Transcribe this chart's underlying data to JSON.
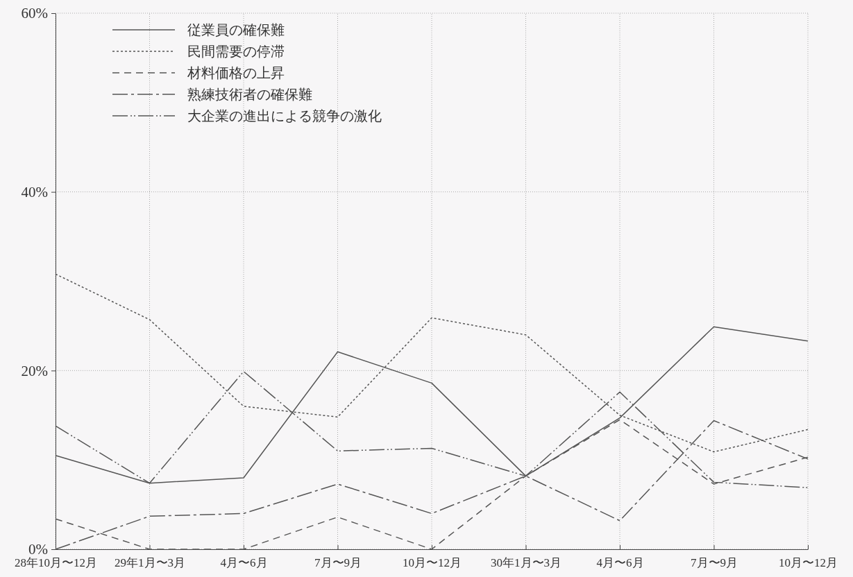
{
  "chart_data": {
    "type": "line",
    "categories": [
      "28年10月〜12月",
      "29年1月〜3月",
      "4月〜6月",
      "7月〜9月",
      "10月〜12月",
      "30年1月〜3月",
      "4月〜6月",
      "7月〜9月",
      "10月〜12月"
    ],
    "series": [
      {
        "name": "従業員の確保難",
        "color": "#555555",
        "line_style": "solid",
        "values": [
          10.5,
          7.4,
          8.0,
          22.1,
          18.6,
          8.2,
          14.7,
          24.9,
          23.3
        ]
      },
      {
        "name": "民間需要の停滞",
        "color": "#555555",
        "line_style": "dotted",
        "values": [
          30.8,
          25.7,
          16.0,
          14.8,
          25.9,
          24.0,
          15.0,
          10.9,
          13.4
        ]
      },
      {
        "name": "材料価格の上昇",
        "color": "#555555",
        "line_style": "dashed",
        "values": [
          3.4,
          0,
          0,
          3.6,
          0,
          8.2,
          14.5,
          7.3,
          10.3
        ]
      },
      {
        "name": "熟練技術者の確保難",
        "color": "#555555",
        "line_style": "dashdot",
        "values": [
          0,
          3.7,
          4.0,
          7.3,
          4.0,
          8.2,
          3.2,
          14.4,
          10.1
        ]
      },
      {
        "name": "大企業の進出による競争の激化",
        "color": "#555555",
        "line_style": "dashdotdot",
        "values": [
          13.8,
          7.4,
          19.9,
          11.0,
          11.3,
          8.2,
          17.6,
          7.5,
          6.9
        ]
      }
    ],
    "ylim": [
      0,
      60
    ],
    "yticks": [
      {
        "value": 0,
        "label": "0%"
      },
      {
        "value": 20,
        "label": "20%"
      },
      {
        "value": 40,
        "label": "40%"
      },
      {
        "value": 60,
        "label": "60%"
      }
    ],
    "grid": true,
    "legend": "top left",
    "marker": "none"
  }
}
